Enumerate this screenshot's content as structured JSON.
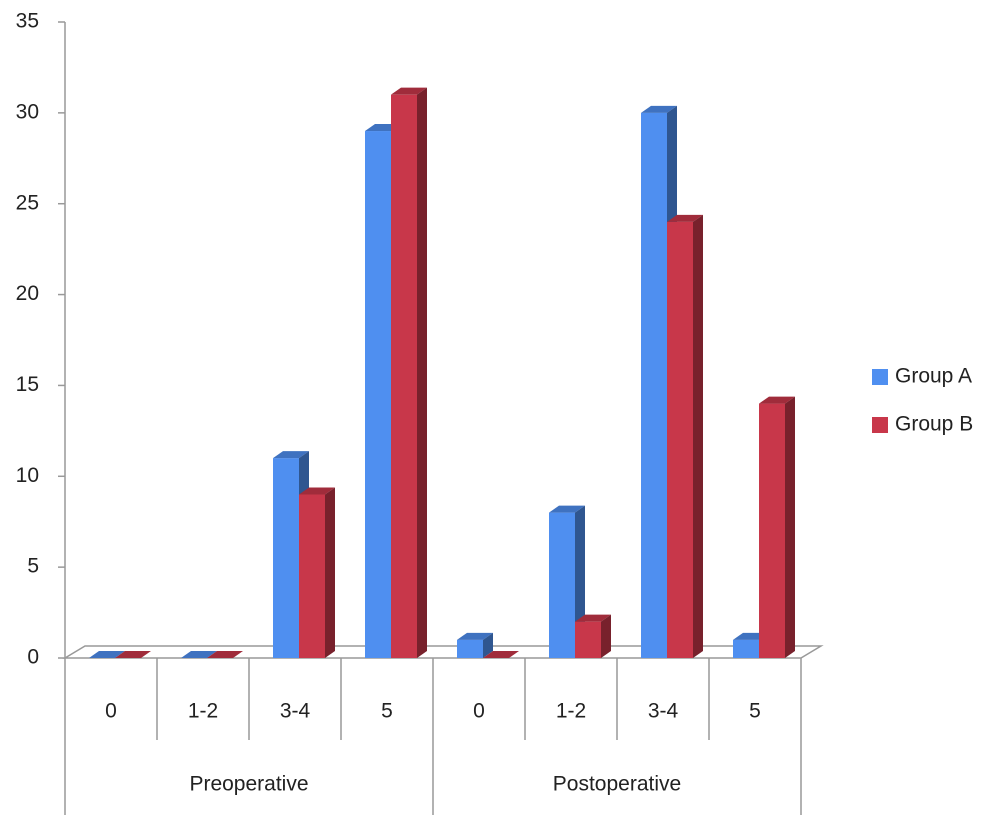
{
  "chart_data": {
    "type": "bar3d",
    "categories": [
      "0",
      "1-2",
      "3-4",
      "5",
      "0",
      "1-2",
      "3-4",
      "5"
    ],
    "category_groups": [
      "Preoperative",
      "Postoperative"
    ],
    "series": [
      {
        "name": "Group A",
        "color": "#4f8ff0",
        "values": [
          0,
          0,
          11,
          29,
          1,
          8,
          30,
          1
        ]
      },
      {
        "name": "Group B",
        "color": "#c8374a",
        "values": [
          0,
          0,
          9,
          31,
          0,
          2,
          24,
          14
        ]
      }
    ],
    "ylim": [
      0,
      35
    ],
    "yticks": [
      0,
      5,
      10,
      15,
      20,
      25,
      30,
      35
    ],
    "legend": "right"
  }
}
